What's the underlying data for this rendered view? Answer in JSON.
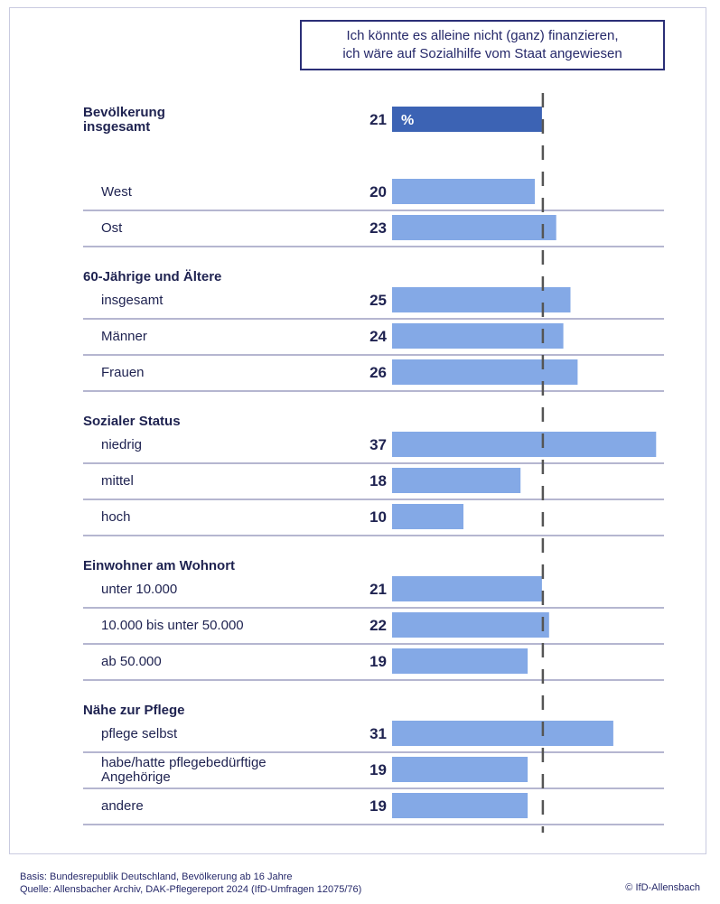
{
  "legend": {
    "line1": "Ich könnte es alleine nicht (ganz) finanzieren,",
    "line2": "ich wäre auf Sozialhilfe vom Staat angewiesen"
  },
  "footer": {
    "basis": "Basis: Bundesrepublik Deutschland, Bevölkerung ab 16 Jahre",
    "source": "Quelle: Allensbacher Archiv, DAK-Pflegereport 2024 (IfD-Umfragen 12075/76)",
    "copyright": "© IfD-Allensbach"
  },
  "colors": {
    "bar": "#84a9e6",
    "bar_highlight": "#3c63b4",
    "text": "#1e2250",
    "divider": "#3a3e82",
    "reference_line": "#555555"
  },
  "chart_data": {
    "type": "bar",
    "orientation": "horizontal",
    "unit": "%",
    "reference_value": 21,
    "xlim": [
      0,
      37
    ],
    "rows": [
      {
        "kind": "bar",
        "label": [
          "Bevölkerung",
          "insgesamt"
        ],
        "value": 21,
        "bold": true,
        "highlight": true,
        "unit_label": "%"
      },
      {
        "kind": "bar",
        "label": [
          "West"
        ],
        "value": 20
      },
      {
        "kind": "bar",
        "label": [
          "Ost"
        ],
        "value": 23
      },
      {
        "kind": "header",
        "label": [
          "60-Jährige und Ältere"
        ]
      },
      {
        "kind": "bar",
        "label": [
          "insgesamt"
        ],
        "value": 25
      },
      {
        "kind": "bar",
        "label": [
          "Männer"
        ],
        "value": 24
      },
      {
        "kind": "bar",
        "label": [
          "Frauen"
        ],
        "value": 26
      },
      {
        "kind": "header",
        "label": [
          "Sozialer Status"
        ]
      },
      {
        "kind": "bar",
        "label": [
          "niedrig"
        ],
        "value": 37
      },
      {
        "kind": "bar",
        "label": [
          "mittel"
        ],
        "value": 18
      },
      {
        "kind": "bar",
        "label": [
          "hoch"
        ],
        "value": 10
      },
      {
        "kind": "header",
        "label": [
          "Einwohner am Wohnort"
        ]
      },
      {
        "kind": "bar",
        "label": [
          "unter 10.000"
        ],
        "value": 21
      },
      {
        "kind": "bar",
        "label": [
          "10.000 bis unter 50.000"
        ],
        "value": 22
      },
      {
        "kind": "bar",
        "label": [
          "ab 50.000"
        ],
        "value": 19
      },
      {
        "kind": "header",
        "label": [
          "Nähe zur Pflege"
        ]
      },
      {
        "kind": "bar",
        "label": [
          "pflege selbst"
        ],
        "value": 31
      },
      {
        "kind": "bar",
        "label": [
          "habe/hatte pflegebedürftige",
          "Angehörige"
        ],
        "value": 19
      },
      {
        "kind": "bar",
        "label": [
          "andere"
        ],
        "value": 19
      }
    ]
  }
}
